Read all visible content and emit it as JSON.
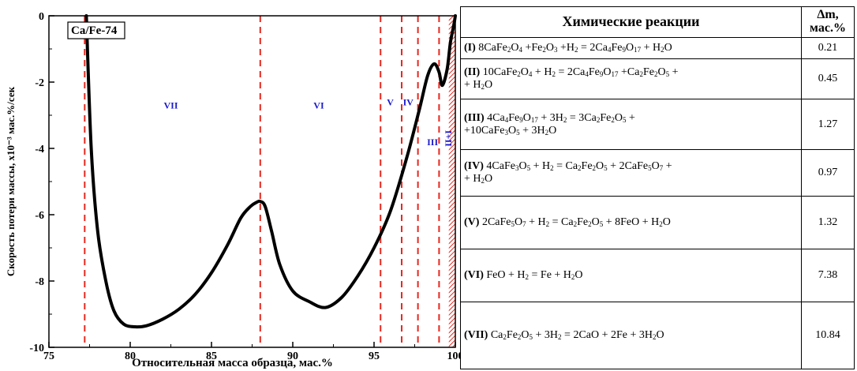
{
  "chart_data": {
    "type": "line",
    "sample_label": "Ca/Fe-74",
    "xlabel": "Относительная масса образца, мас.%",
    "ylabel": "Скорость потери массы, x10⁻³ мас.%/сек",
    "xlim": [
      75,
      100
    ],
    "ylim": [
      -10,
      0
    ],
    "x_ticks": [
      "75",
      "80",
      "85",
      "90",
      "95",
      "100"
    ],
    "y_ticks": [
      "0",
      "-2",
      "-4",
      "-6",
      "-8",
      "-10"
    ],
    "series": [
      {
        "x": [
          77.3,
          77.6,
          78.0,
          78.5,
          79.0,
          79.6,
          80.3,
          81.0,
          82.0,
          83.0,
          84.0,
          85.0,
          86.0,
          86.8,
          87.4,
          87.8,
          88.0,
          88.3,
          88.7,
          89.2,
          90.0,
          91.0,
          92.0,
          93.0,
          94.0,
          95.0,
          96.0,
          97.0,
          97.8,
          98.3,
          98.7,
          99.0,
          99.2,
          99.5,
          99.7,
          99.9,
          100.0
        ],
        "y": [
          0,
          -4.0,
          -6.5,
          -8.0,
          -8.9,
          -9.3,
          -9.38,
          -9.35,
          -9.15,
          -8.85,
          -8.4,
          -7.75,
          -6.9,
          -6.1,
          -5.75,
          -5.62,
          -5.6,
          -5.75,
          -6.5,
          -7.5,
          -8.3,
          -8.62,
          -8.8,
          -8.5,
          -7.85,
          -7.0,
          -5.9,
          -4.3,
          -2.8,
          -1.8,
          -1.45,
          -1.7,
          -2.1,
          -1.6,
          -0.8,
          -0.3,
          0
        ]
      }
    ],
    "boundaries": [
      77.2,
      88.0,
      95.4,
      96.7,
      97.7,
      99.0
    ],
    "region_labels": [
      {
        "text": "VII",
        "x": 82.5,
        "y": -2.8
      },
      {
        "text": "VI",
        "x": 91.6,
        "y": -2.8
      },
      {
        "text": "V",
        "x": 96.0,
        "y": -2.7
      },
      {
        "text": "IV",
        "x": 97.1,
        "y": -2.7
      },
      {
        "text": "III",
        "x": 98.6,
        "y": -3.9
      },
      {
        "text": "I+II",
        "x": 99.4,
        "y": -3.7
      }
    ],
    "hatched_range": [
      99.6,
      100.0
    ]
  },
  "table": {
    "header_reactions": "Химические реакции",
    "header_dm_line1": "Δm,",
    "header_dm_line2": "мас.%",
    "rows": [
      {
        "num": "(I)",
        "html": "8CaFe<sub>2</sub>O<sub>4</sub> +Fe<sub>2</sub>O<sub>3</sub> +H<sub>2</sub> = 2Ca<sub>4</sub>Fe<sub>9</sub>O<sub>17</sub> + H<sub>2</sub>O",
        "dm": "0.21"
      },
      {
        "num": "(II)",
        "html": "10CaFe<sub>2</sub>O<sub>4</sub> + H<sub>2</sub> = 2Ca<sub>4</sub>Fe<sub>9</sub>O<sub>17</sub> +Ca<sub>2</sub>Fe<sub>2</sub>O<sub>5</sub> +<br>+ H<sub>2</sub>O",
        "dm": "0.45"
      },
      {
        "num": "(III)",
        "html": "4Ca<sub>4</sub>Fe<sub>9</sub>O<sub>17</sub> + 3H<sub>2</sub> = 3Ca<sub>2</sub>Fe<sub>2</sub>O<sub>5</sub> +<br>+10CaFe<sub>3</sub>O<sub>5</sub> + 3H<sub>2</sub>O",
        "dm": "1.27"
      },
      {
        "num": "(IV)",
        "html": "4CaFe<sub>3</sub>O<sub>5</sub> + H<sub>2</sub> = Ca<sub>2</sub>Fe<sub>2</sub>O<sub>5</sub> + 2CaFe<sub>5</sub>O<sub>7</sub> +<br>+ H<sub>2</sub>O",
        "dm": "0.97"
      },
      {
        "num": "(V)",
        "html": "2CaFe<sub>5</sub>O<sub>7</sub> + H<sub>2</sub> = Ca<sub>2</sub>Fe<sub>2</sub>O<sub>5</sub> + 8FeO + H<sub>2</sub>O",
        "dm": "1.32"
      },
      {
        "num": "(VI)",
        "html": "FeO + H<sub>2</sub> = Fe + H<sub>2</sub>O",
        "dm": "7.38"
      },
      {
        "num": "(VII)",
        "html": "Ca<sub>2</sub>Fe<sub>2</sub>O<sub>5</sub> + 3H<sub>2</sub> = 2CaO + 2Fe + 3H<sub>2</sub>O",
        "dm": "10.84"
      }
    ]
  },
  "colors": {
    "curve": "#000000",
    "boundary_line": "#e8271e",
    "region_label": "#1a1acc",
    "hatch": "#e8271e"
  }
}
